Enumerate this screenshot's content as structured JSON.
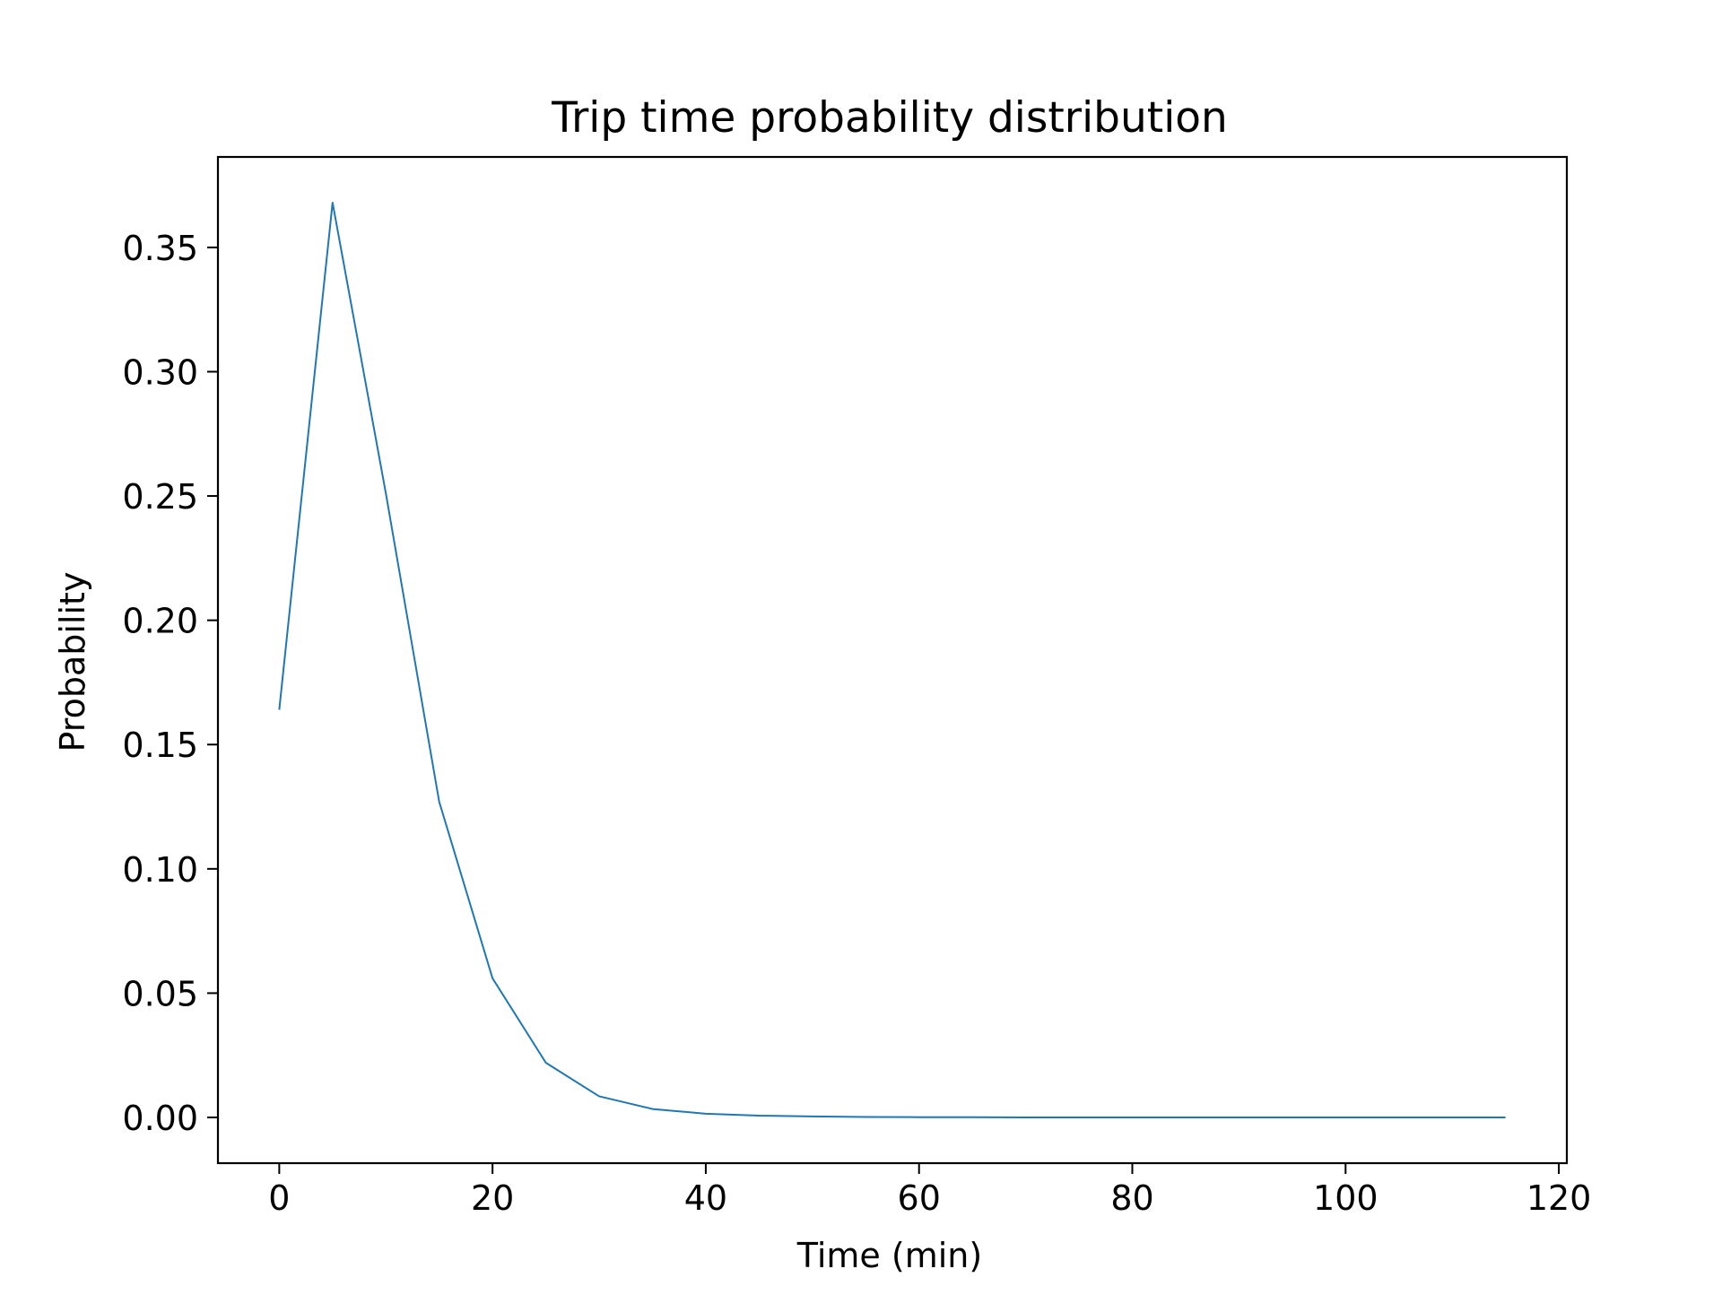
{
  "chart_data": {
    "type": "line",
    "title": "Trip time probability distribution",
    "xlabel": "Time (min)",
    "ylabel": "Probability",
    "xlim": [
      -5.75,
      120.75
    ],
    "ylim": [
      -0.0184,
      0.3864
    ],
    "xticks": [
      0,
      20,
      40,
      60,
      80,
      100,
      120
    ],
    "xtick_labels": [
      "0",
      "20",
      "40",
      "60",
      "80",
      "100",
      "120"
    ],
    "yticks": [
      0.0,
      0.05,
      0.1,
      0.15,
      0.2,
      0.25,
      0.3,
      0.35
    ],
    "ytick_labels": [
      "0.00",
      "0.05",
      "0.10",
      "0.15",
      "0.20",
      "0.25",
      "0.30",
      "0.35"
    ],
    "grid": false,
    "legend": "none",
    "series": [
      {
        "color": "#1f77b4",
        "x": [
          0,
          5,
          10,
          15,
          20,
          25,
          30,
          35,
          40,
          45,
          50,
          55,
          60,
          65,
          70,
          75,
          80,
          85,
          90,
          95,
          100,
          105,
          110,
          115
        ],
        "values": [
          0.164,
          0.368,
          0.251,
          0.127,
          0.056,
          0.022,
          0.0085,
          0.0034,
          0.0015,
          0.0007,
          0.0004,
          0.0002,
          0.0001,
          0.0001,
          0.0,
          0.0,
          0.0,
          0.0,
          0.0,
          0.0,
          0.0,
          0.0,
          0.0,
          0.0
        ]
      }
    ]
  }
}
